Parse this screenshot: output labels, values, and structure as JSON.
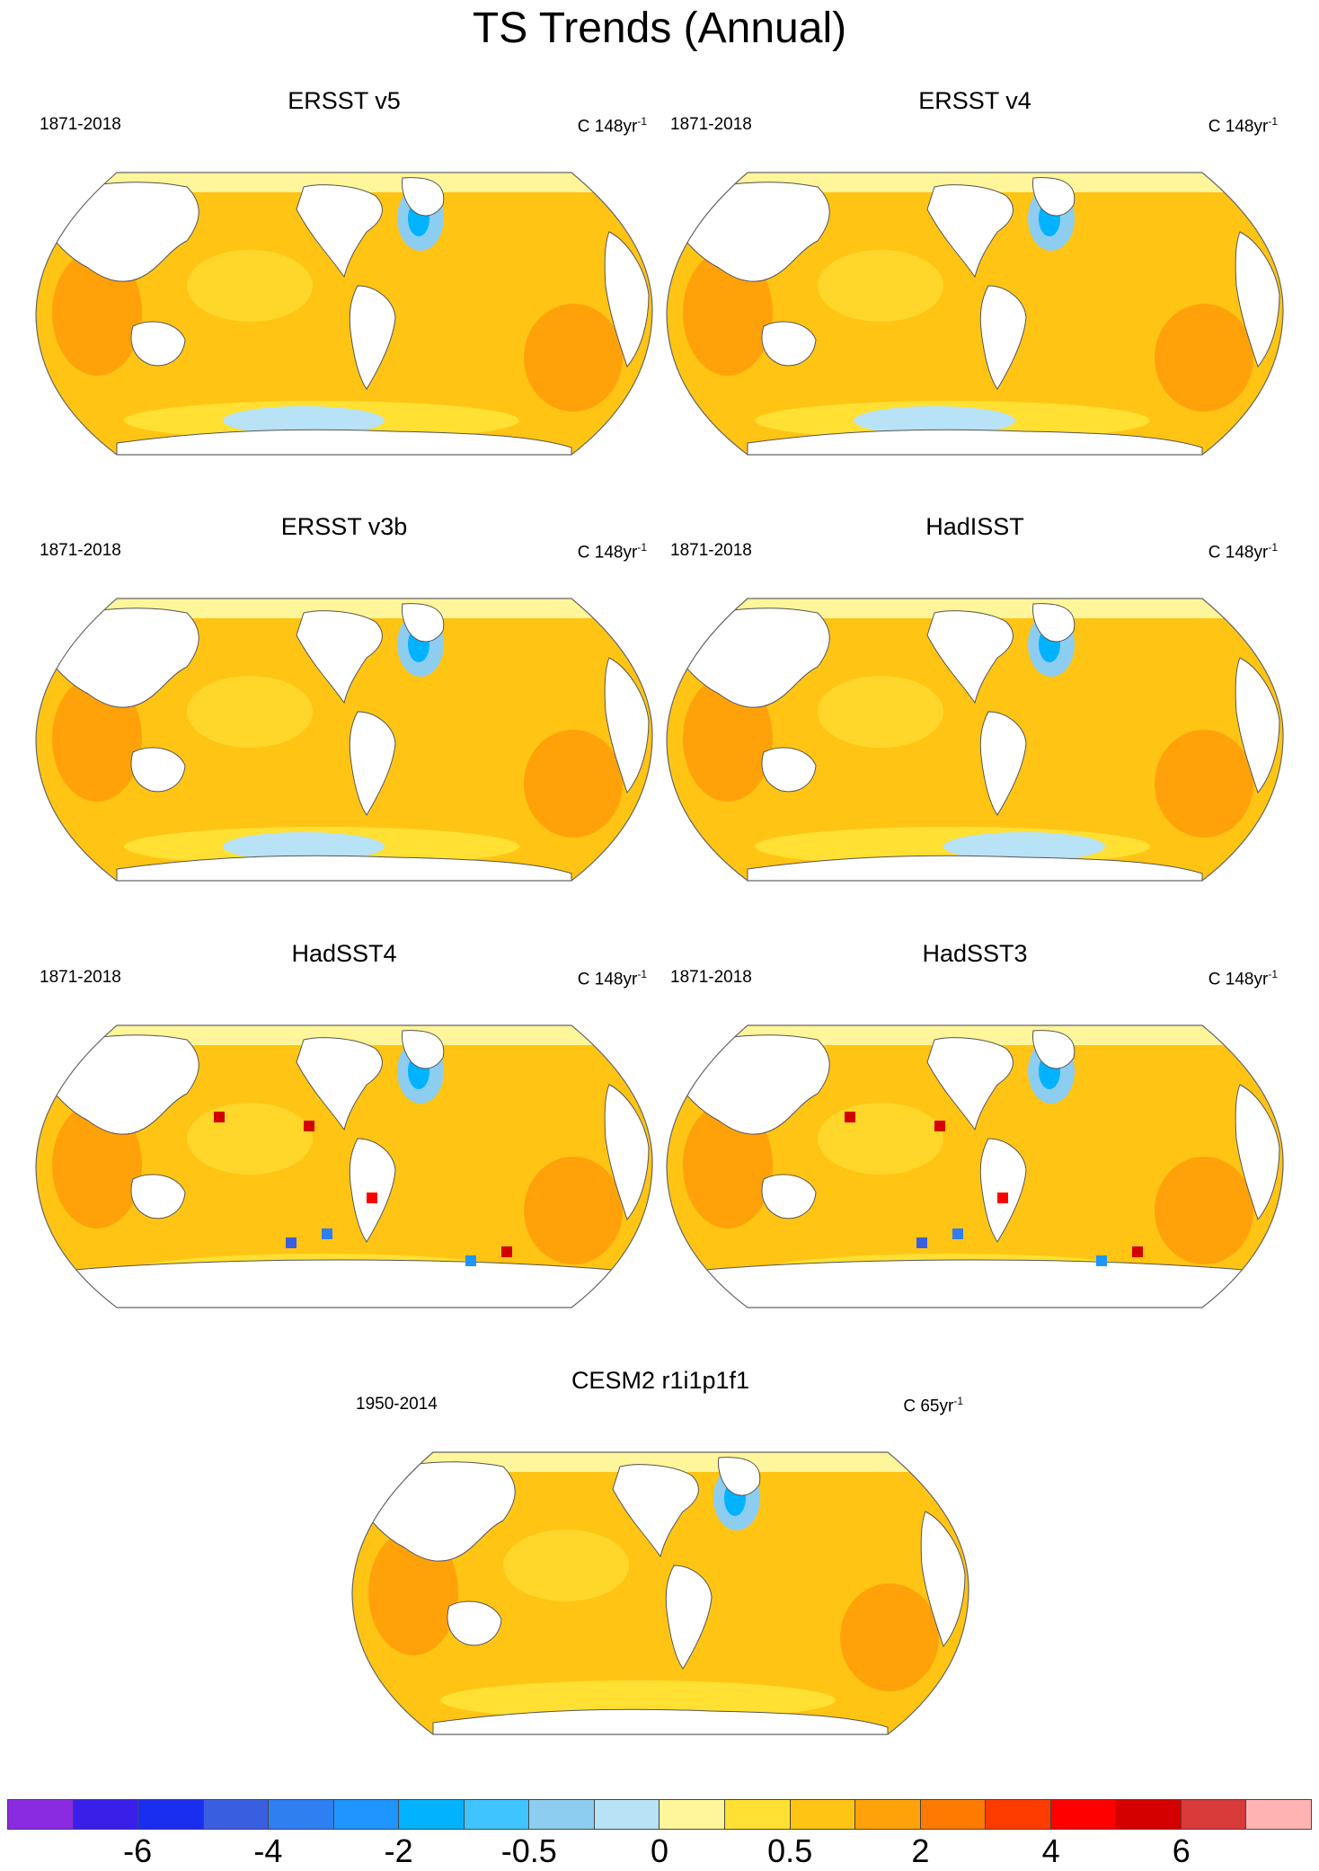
{
  "figure": {
    "title": "TS Trends (Annual)"
  },
  "panels": [
    {
      "title": "ERSST v5",
      "period": "1871-2018",
      "units": "C 148yr",
      "units_exp": "-1"
    },
    {
      "title": "ERSST v4",
      "period": "1871-2018",
      "units": "C 148yr",
      "units_exp": "-1"
    },
    {
      "title": "ERSST v3b",
      "period": "1871-2018",
      "units": "C 148yr",
      "units_exp": "-1"
    },
    {
      "title": "HadISST",
      "period": "1871-2018",
      "units": "C 148yr",
      "units_exp": "-1"
    },
    {
      "title": "HadSST4",
      "period": "1871-2018",
      "units": "C 148yr",
      "units_exp": "-1"
    },
    {
      "title": "HadSST3",
      "period": "1871-2018",
      "units": "C 148yr",
      "units_exp": "-1"
    },
    {
      "title": "CESM2 r1i1p1f1",
      "period": "1950-2014",
      "units": "C 65yr",
      "units_exp": "-1"
    }
  ],
  "colorbar": {
    "colors": [
      "#8a2be2",
      "#3a1fe8",
      "#1a2ef0",
      "#3a5ee0",
      "#2f7ff0",
      "#1f95ff",
      "#00b2ff",
      "#40c4ff",
      "#8dcdf0",
      "#b8e2f5",
      "#fff59a",
      "#ffe033",
      "#ffc414",
      "#ffa20a",
      "#ff7a00",
      "#ff3c00",
      "#ff0000",
      "#d40000",
      "#d83a3a",
      "#ffb3b3"
    ],
    "labels": [
      "-6",
      "-4",
      "-2",
      "-0.5",
      "0",
      "0.5",
      "2",
      "4",
      "6"
    ]
  },
  "chart_data": {
    "type": "map",
    "projection": "Robinson",
    "variable": "Surface temperature (TS) linear trend",
    "season": "Annual",
    "colorbar_labels": [
      "-6",
      "-4",
      "-2",
      "-0.5",
      "0",
      "0.5",
      "2",
      "4",
      "6"
    ],
    "panels": [
      {
        "dataset": "ERSST v5",
        "period": "1871-2018"
      },
      {
        "dataset": "ERSST v4",
        "period": "1871-2018"
      },
      {
        "dataset": "ERSST v3b",
        "period": "1871-2018"
      },
      {
        "dataset": "HadISST",
        "period": "1871-2018"
      },
      {
        "dataset": "HadSST4",
        "period": "1871-2018"
      },
      {
        "dataset": "HadSST3",
        "period": "1871-2018"
      },
      {
        "dataset": "CESM2 r1i1p1f1",
        "period": "1950-2014"
      }
    ]
  }
}
